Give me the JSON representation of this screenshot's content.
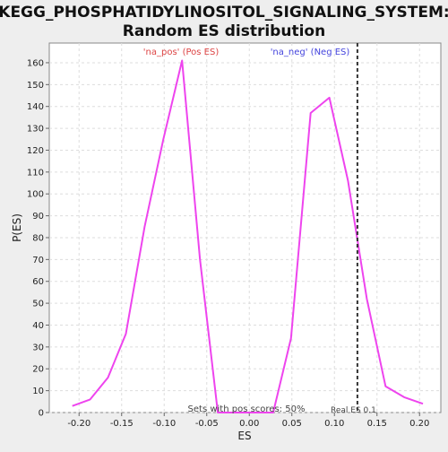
{
  "chart_data": {
    "type": "line",
    "title_line1": "KEGG_PHOSPHATIDYLINOSITOL_SIGNALING_SYSTEM:",
    "title_line2": "Random ES distribution",
    "xlabel": "ES",
    "ylabel": "P(ES)",
    "xlim": [
      -0.235,
      0.225
    ],
    "ylim": [
      0,
      169
    ],
    "grid": true,
    "xticks": [
      -0.2,
      -0.15,
      -0.1,
      -0.05,
      0.0,
      0.05,
      0.1,
      0.15,
      0.2
    ],
    "xtick_labels": [
      "-0.20",
      "-0.15",
      "-0.10",
      "-0.05",
      "0.00",
      "0.05",
      "0.10",
      "0.15",
      "0.20"
    ],
    "yticks": [
      0,
      10,
      20,
      30,
      40,
      50,
      60,
      70,
      80,
      90,
      100,
      110,
      120,
      130,
      140,
      150,
      160
    ],
    "series": [
      {
        "color": "#ee44ee",
        "x": [
          -0.208,
          -0.187,
          -0.166,
          -0.145,
          -0.123,
          -0.101,
          -0.079,
          -0.058,
          -0.037,
          -0.015,
          0.006,
          0.028,
          0.049,
          0.072,
          0.094,
          0.116,
          0.138,
          0.16,
          0.182,
          0.204
        ],
        "y": [
          3,
          6,
          16,
          36,
          85,
          125,
          161,
          70,
          0,
          0,
          0,
          0,
          34,
          137,
          144,
          106,
          52,
          12,
          7,
          4
        ]
      }
    ],
    "real_es": {
      "x": 0.127,
      "label": "Real ES 0.1"
    },
    "annotations": {
      "pos": {
        "text": "'na_pos' (Pos ES)",
        "color": "#dd4444"
      },
      "neg": {
        "text": "'na_neg' (Neg ES)",
        "color": "#4444dd"
      },
      "footer": "Sets with pos scores: 50%"
    }
  }
}
